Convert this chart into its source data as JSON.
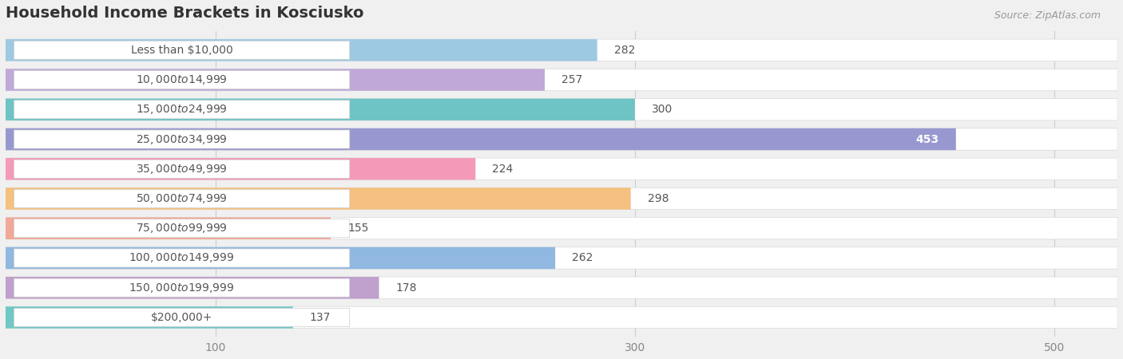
{
  "title": "Household Income Brackets in Kosciusko",
  "source": "Source: ZipAtlas.com",
  "categories": [
    "Less than $10,000",
    "$10,000 to $14,999",
    "$15,000 to $24,999",
    "$25,000 to $34,999",
    "$35,000 to $49,999",
    "$50,000 to $74,999",
    "$75,000 to $99,999",
    "$100,000 to $149,999",
    "$150,000 to $199,999",
    "$200,000+"
  ],
  "values": [
    282,
    257,
    300,
    453,
    224,
    298,
    155,
    262,
    178,
    137
  ],
  "bar_colors": [
    "#9ec9e2",
    "#c0a8d8",
    "#6ec4c4",
    "#9898d0",
    "#f49ab8",
    "#f5c080",
    "#f0a898",
    "#90b8e0",
    "#c0a0cc",
    "#70c8c4"
  ],
  "xlim": [
    0,
    530
  ],
  "xticks": [
    100,
    300,
    500
  ],
  "value_label_inside_threshold": 430,
  "background_color": "#f0f0f0",
  "bar_row_bg_color": "#ffffff",
  "bar_bg_inner_color": "#e8e8e8",
  "title_fontsize": 14,
  "source_fontsize": 9,
  "label_fontsize": 10,
  "tick_fontsize": 10,
  "label_pill_color": "#ffffff",
  "label_text_color": "#555555",
  "value_text_color_outside": "#555555",
  "value_text_color_inside": "#ffffff"
}
